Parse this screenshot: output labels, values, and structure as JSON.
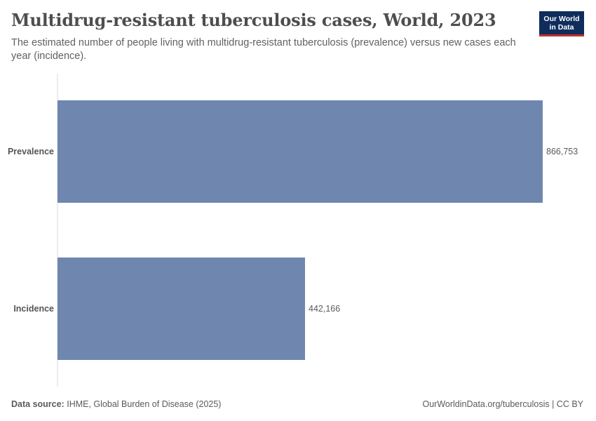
{
  "header": {
    "title": "Multidrug-resistant tuberculosis cases, World, 2023",
    "subtitle": "The estimated number of people living with multidrug-resistant tuberculosis (prevalence) versus new cases each year (incidence).",
    "logo_line1": "Our World",
    "logo_line2": "in Data"
  },
  "colors": {
    "bar": "#6f87ae",
    "axis": "#d9d9d9",
    "logo_bg": "#0f2d5c",
    "logo_accent": "#c2302f"
  },
  "chart_data": {
    "type": "bar",
    "orientation": "horizontal",
    "categories": [
      "Prevalence",
      "Incidence"
    ],
    "values": [
      866753,
      442166
    ],
    "value_labels": [
      "866,753",
      "442,166"
    ],
    "xlim": [
      0,
      866753
    ],
    "grid": false,
    "legend": "none"
  },
  "footer": {
    "source_label": "Data source:",
    "source_text": "IHME, Global Burden of Disease (2025)",
    "url": "OurWorldinData.org/tuberculosis | CC BY"
  }
}
